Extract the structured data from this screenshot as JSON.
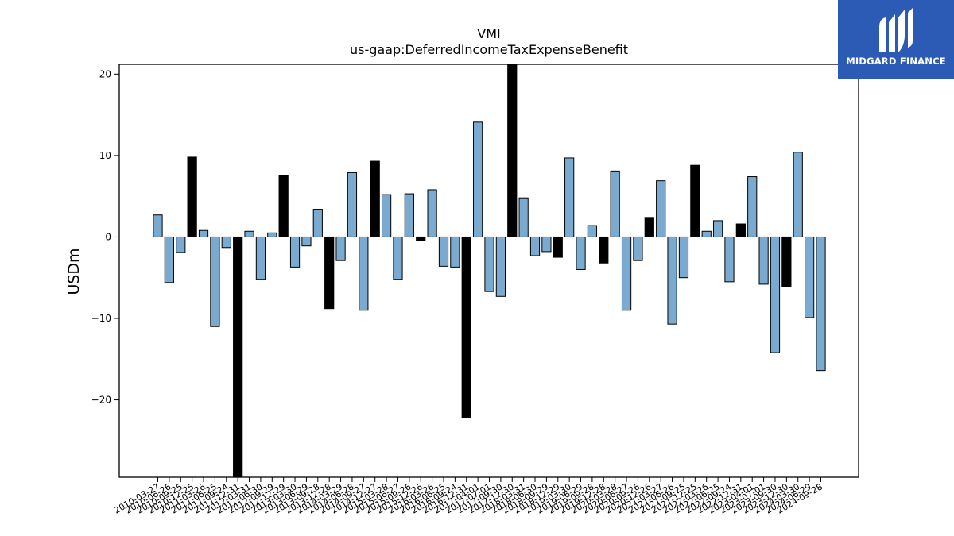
{
  "brand": {
    "name": "MIDGARD FINANCE",
    "background": "#2b5bb5"
  },
  "chart_data": {
    "type": "bar",
    "title": "VMI",
    "subtitle": "us-gaap:DeferredIncomeTaxExpenseBenefit",
    "ylabel": "USDm",
    "xlabel": "",
    "ylim": [
      -29.5,
      21.2
    ],
    "yticks": [
      -20,
      -10,
      0,
      10,
      20
    ],
    "grid": false,
    "colors": {
      "quarter": "#7aaad0",
      "annual": "#000000"
    },
    "categories": [
      "2010-03-27",
      "2010-06-26",
      "2010-09-25",
      "2010-12-25",
      "2011-03-26",
      "2011-06-25",
      "2011-09-24",
      "2011-12-31",
      "2012-03-31",
      "2012-06-30",
      "2012-09-29",
      "2012-12-29",
      "2013-03-30",
      "2013-06-29",
      "2013-09-28",
      "2013-12-28",
      "2014-03-29",
      "2014-06-28",
      "2014-09-27",
      "2014-12-27",
      "2015-03-28",
      "2015-06-27",
      "2015-09-26",
      "2015-12-26",
      "2016-03-26",
      "2016-06-25",
      "2016-09-24",
      "2016-12-31",
      "2017-04-01",
      "2017-07-01",
      "2017-09-30",
      "2017-12-30",
      "2018-03-31",
      "2018-06-30",
      "2018-09-29",
      "2018-12-29",
      "2019-03-30",
      "2019-06-29",
      "2019-09-28",
      "2019-12-28",
      "2020-03-28",
      "2020-06-27",
      "2020-09-26",
      "2020-12-26",
      "2021-03-27",
      "2021-06-26",
      "2021-09-25",
      "2021-12-25",
      "2022-03-26",
      "2022-06-25",
      "2022-09-24",
      "2022-12-31",
      "2023-04-01",
      "2023-07-01",
      "2023-09-30",
      "2023-12-30",
      "2024-03-30",
      "2024-06-29",
      "2024-09-28"
    ],
    "values": [
      2.7,
      -5.6,
      -1.9,
      9.8,
      0.8,
      -11.0,
      -1.3,
      -29.5,
      0.7,
      -5.2,
      0.5,
      7.6,
      -3.7,
      -1.1,
      3.4,
      -8.8,
      -2.9,
      7.9,
      -9.0,
      9.3,
      5.2,
      -5.2,
      5.3,
      -0.4,
      5.8,
      -3.6,
      -3.7,
      -22.2,
      14.1,
      -6.7,
      -7.3,
      21.2,
      4.8,
      -2.3,
      -1.8,
      -2.5,
      9.7,
      -4.0,
      1.4,
      -3.2,
      8.1,
      -9.0,
      -2.9,
      2.4,
      6.9,
      -10.7,
      -5.0,
      8.8,
      0.7,
      2.0,
      -5.5,
      1.6,
      7.4,
      -5.8,
      -14.2,
      -6.1,
      10.4,
      -9.9,
      -16.4
    ],
    "annual": [
      false,
      false,
      false,
      true,
      false,
      false,
      false,
      true,
      false,
      false,
      false,
      true,
      false,
      false,
      false,
      true,
      false,
      false,
      false,
      true,
      false,
      false,
      false,
      true,
      false,
      false,
      false,
      true,
      false,
      false,
      false,
      true,
      false,
      false,
      false,
      true,
      false,
      false,
      false,
      true,
      false,
      false,
      false,
      true,
      false,
      false,
      false,
      true,
      false,
      false,
      false,
      true,
      false,
      false,
      false,
      true,
      false,
      false,
      false
    ]
  }
}
